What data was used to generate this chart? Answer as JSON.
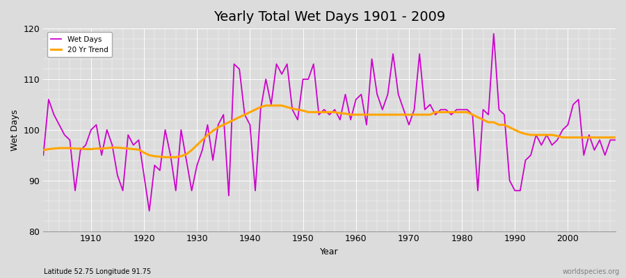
{
  "title": "Yearly Total Wet Days 1901 - 2009",
  "xlabel": "Year",
  "ylabel": "Wet Days",
  "ylim": [
    80,
    120
  ],
  "xlim": [
    1901,
    2009
  ],
  "bg_color": "#dcdcdc",
  "plot_bg_color": "#dcdcdc",
  "wet_days_color": "#cc00cc",
  "trend_color": "#ffa500",
  "lat_lon_text": "Latitude 52.75 Longitude 91.75",
  "watermark": "worldspecies.org",
  "years": [
    1901,
    1902,
    1903,
    1904,
    1905,
    1906,
    1907,
    1908,
    1909,
    1910,
    1911,
    1912,
    1913,
    1914,
    1915,
    1916,
    1917,
    1918,
    1919,
    1920,
    1921,
    1922,
    1923,
    1924,
    1925,
    1926,
    1927,
    1928,
    1929,
    1930,
    1931,
    1932,
    1933,
    1934,
    1935,
    1936,
    1937,
    1938,
    1939,
    1940,
    1941,
    1942,
    1943,
    1944,
    1945,
    1946,
    1947,
    1948,
    1949,
    1950,
    1951,
    1952,
    1953,
    1954,
    1955,
    1956,
    1957,
    1958,
    1959,
    1960,
    1961,
    1962,
    1963,
    1964,
    1965,
    1966,
    1967,
    1968,
    1969,
    1970,
    1971,
    1972,
    1973,
    1974,
    1975,
    1976,
    1977,
    1978,
    1979,
    1980,
    1981,
    1982,
    1983,
    1984,
    1985,
    1986,
    1987,
    1988,
    1989,
    1990,
    1991,
    1992,
    1993,
    1994,
    1995,
    1996,
    1997,
    1998,
    1999,
    2000,
    2001,
    2002,
    2003,
    2004,
    2005,
    2006,
    2007,
    2008,
    2009
  ],
  "wet_days": [
    95,
    106,
    103,
    101,
    99,
    98,
    88,
    96,
    97,
    100,
    101,
    95,
    100,
    97,
    91,
    88,
    99,
    97,
    98,
    91,
    84,
    93,
    92,
    100,
    95,
    88,
    100,
    94,
    88,
    93,
    96,
    101,
    94,
    101,
    103,
    87,
    113,
    112,
    103,
    101,
    88,
    104,
    110,
    105,
    113,
    111,
    113,
    104,
    102,
    110,
    110,
    113,
    103,
    104,
    103,
    104,
    102,
    107,
    102,
    106,
    107,
    101,
    114,
    107,
    104,
    107,
    115,
    107,
    104,
    101,
    104,
    115,
    104,
    105,
    103,
    104,
    104,
    103,
    104,
    104,
    104,
    103,
    88,
    104,
    103,
    119,
    104,
    103,
    90,
    88,
    88,
    94,
    95,
    99,
    97,
    99,
    97,
    98,
    100,
    101,
    105,
    106,
    95,
    99,
    96,
    98,
    95,
    98,
    98
  ],
  "trend": [
    96.0,
    96.2,
    96.3,
    96.4,
    96.4,
    96.4,
    96.3,
    96.3,
    96.2,
    96.2,
    96.3,
    96.3,
    96.4,
    96.5,
    96.5,
    96.4,
    96.3,
    96.2,
    96.1,
    95.5,
    95.0,
    94.8,
    94.7,
    94.6,
    94.6,
    94.6,
    94.8,
    95.2,
    96.0,
    97.0,
    98.0,
    99.0,
    99.8,
    100.5,
    101.0,
    101.5,
    102.0,
    102.5,
    103.0,
    103.5,
    104.0,
    104.5,
    104.8,
    104.8,
    104.8,
    104.8,
    104.5,
    104.2,
    104.0,
    103.8,
    103.5,
    103.5,
    103.5,
    103.5,
    103.5,
    103.5,
    103.3,
    103.2,
    103.0,
    103.0,
    103.0,
    103.0,
    103.0,
    103.0,
    103.0,
    103.0,
    103.0,
    103.0,
    103.0,
    103.0,
    103.0,
    103.0,
    103.0,
    103.0,
    103.5,
    103.5,
    103.5,
    103.5,
    103.5,
    103.5,
    103.5,
    103.0,
    102.5,
    102.0,
    101.5,
    101.5,
    101.0,
    101.0,
    100.5,
    100.0,
    99.5,
    99.2,
    99.0,
    99.0,
    99.0,
    99.0,
    99.0,
    98.8,
    98.5,
    98.5,
    98.5,
    98.5,
    98.5,
    98.5,
    98.5,
    98.5,
    98.5,
    98.5,
    98.5
  ]
}
